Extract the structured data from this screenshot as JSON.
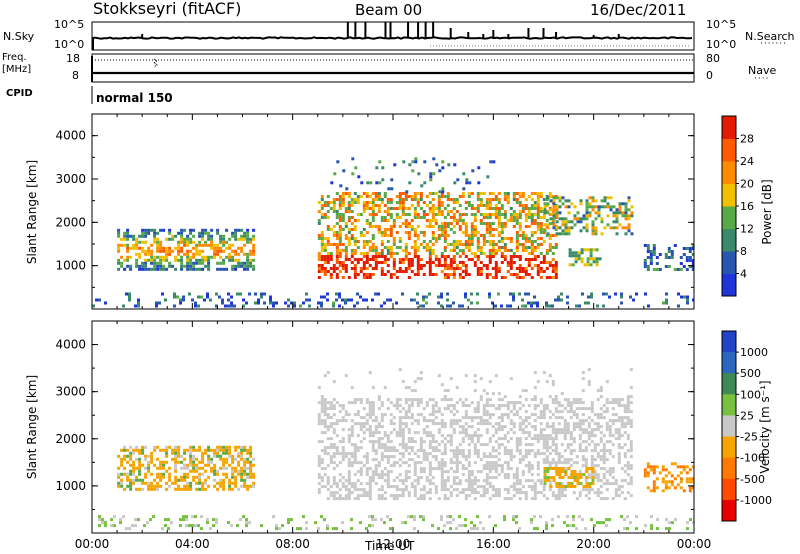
{
  "header": {
    "station": "Stokkseyri (fitACF)",
    "beam": "Beam 00",
    "date": "16/Dec/2011"
  },
  "top_panels": {
    "nsky_label": "N.Sky",
    "nsearch_label": "N.Search",
    "left_ticks": [
      "10^5",
      "10^0"
    ],
    "right_ticks": [
      "10^5",
      "10^0"
    ],
    "freq_label_1": "Freq.",
    "freq_label_2": "[MHz]",
    "freq_ticks": [
      "18",
      "8"
    ],
    "nave_ticks": [
      "80",
      "0"
    ],
    "nave_label": "Nave",
    "cpid_label": "CPID",
    "cpid_value": "normal 150"
  },
  "colors": {
    "power": [
      "#1f35d8",
      "#2855b0",
      "#3a8a6a",
      "#58aa48",
      "#f0c000",
      "#ff8c00",
      "#ff5a00",
      "#e51b00"
    ],
    "velocity": [
      "#2243c8",
      "#2a68c0",
      "#3d8a54",
      "#78c040",
      "#c8c8c8",
      "#f5a400",
      "#ff7a00",
      "#ff4a00",
      "#e80000"
    ]
  },
  "chart_data": [
    {
      "type": "heatmap",
      "ylabel": "Slant Range [km]",
      "ylim": [
        0,
        4500
      ],
      "y_ticks": [
        "1000",
        "2000",
        "3000",
        "4000"
      ],
      "colorbar": {
        "label": "Power [dB]",
        "ticks": [
          "4",
          "8",
          "12",
          "16",
          "20",
          "24",
          "28"
        ],
        "range": [
          0,
          32
        ]
      },
      "regions": [
        {
          "x": [
            1.0,
            6.5
          ],
          "y": [
            800,
            1900
          ],
          "level": "mid"
        },
        {
          "x": [
            9.0,
            13.5
          ],
          "y": [
            700,
            2800
          ],
          "level": "high"
        },
        {
          "x": [
            13.5,
            18.5
          ],
          "y": [
            700,
            2600
          ],
          "level": "high"
        },
        {
          "x": [
            18.0,
            21.5
          ],
          "y": [
            1000,
            2600
          ],
          "level": "mid"
        },
        {
          "x": [
            22.0,
            24.0
          ],
          "y": [
            900,
            1500
          ],
          "level": "low"
        }
      ]
    },
    {
      "type": "heatmap",
      "ylabel": "Slant Range [km]",
      "xlabel": "Time UT",
      "ylim": [
        0,
        4500
      ],
      "y_ticks": [
        "1000",
        "2000",
        "3000",
        "4000"
      ],
      "x_ticks": [
        "00:00",
        "04:00",
        "08:00",
        "12:00",
        "16:00",
        "20:00",
        "00:00"
      ],
      "colorbar": {
        "label": "Velocity [m s⁻¹]",
        "ticks": [
          "1000",
          "500",
          "100",
          "25",
          "-25",
          "-100",
          "-500",
          "-1000"
        ]
      },
      "regions": [
        {
          "x": [
            1.0,
            6.5
          ],
          "y": [
            800,
            1900
          ],
          "level": "-100 to -500"
        },
        {
          "x": [
            9.0,
            21.5
          ],
          "y": [
            700,
            3500
          ],
          "level": "-25 to 25"
        },
        {
          "x": [
            18.0,
            20.0
          ],
          "y": [
            1000,
            1400
          ],
          "level": "-100 to -500"
        },
        {
          "x": [
            22.0,
            24.0
          ],
          "y": [
            900,
            1500
          ],
          "level": "-100 to -500"
        }
      ]
    }
  ]
}
